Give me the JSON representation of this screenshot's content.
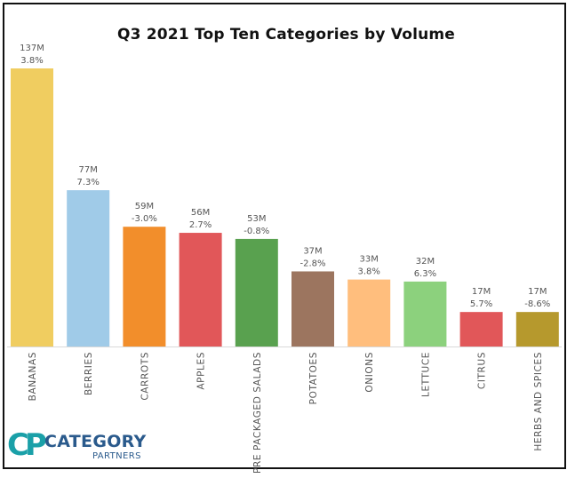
{
  "chart_data": {
    "type": "bar",
    "title": "Q3 2021 Top Ten Categories by Volume",
    "categories": [
      "BANANAS",
      "BERRIES",
      "CARROTS",
      "APPLES",
      "PRE PACKAGED SALADS",
      "POTATOES",
      "ONIONS",
      "LETTUCE",
      "CITRUS",
      "HERBS AND SPICES"
    ],
    "values": [
      137,
      77,
      59,
      56,
      53,
      37,
      33,
      32,
      17,
      17
    ],
    "value_labels": [
      "137M",
      "77M",
      "59M",
      "56M",
      "53M",
      "37M",
      "33M",
      "32M",
      "17M",
      "17M"
    ],
    "change_labels": [
      "3.8%",
      "7.3%",
      "-3.0%",
      "2.7%",
      "-0.8%",
      "-2.8%",
      "3.8%",
      "6.3%",
      "5.7%",
      "-8.6%"
    ],
    "colors": [
      "#f0cd60",
      "#a0cbe8",
      "#f28e2b",
      "#e15759",
      "#59a14f",
      "#9c755f",
      "#ffbe7d",
      "#8cd17d",
      "#e15759",
      "#b6992d"
    ],
    "unit": "M",
    "ylim": [
      0,
      137
    ],
    "grid": false,
    "legend": "none"
  },
  "logo": {
    "mark": "CP",
    "name": "CATEGORY",
    "sub": "PARTNERS",
    "mark_color": "#1aa0a8",
    "text_color": "#2a5a8c"
  }
}
